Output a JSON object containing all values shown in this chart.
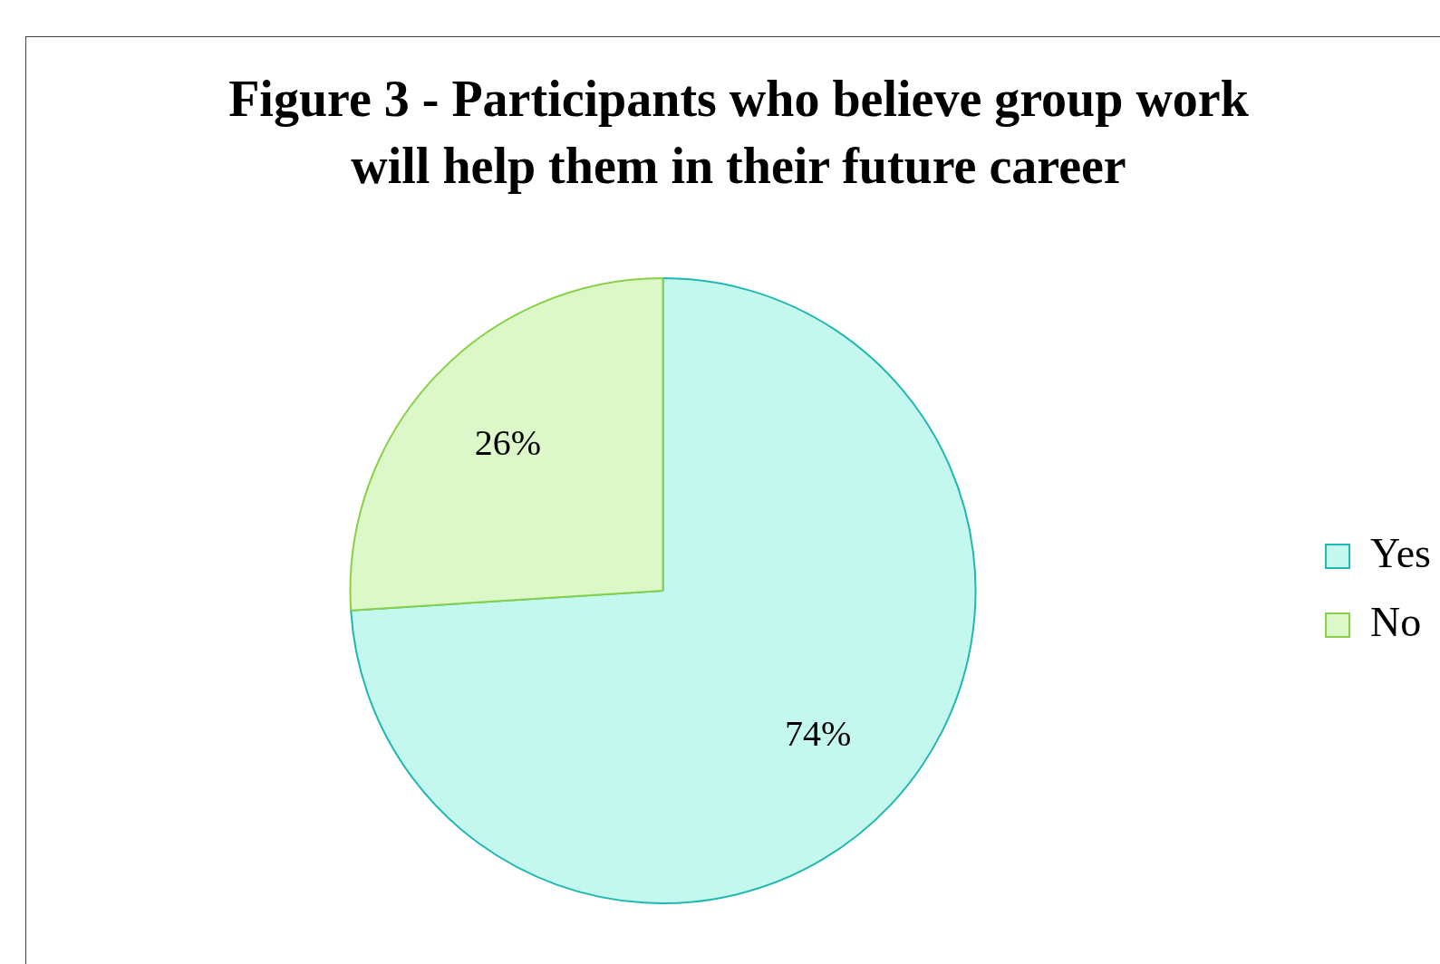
{
  "chart_data": {
    "type": "pie",
    "title": "Figure 3 - Participants who believe group work will help them in their future career",
    "categories": [
      "Yes",
      "No"
    ],
    "values": [
      74,
      26
    ],
    "value_labels": [
      "74%",
      "26%"
    ],
    "colors": [
      "#c4f8ee",
      "#dcf8c8"
    ],
    "legend": "right"
  }
}
